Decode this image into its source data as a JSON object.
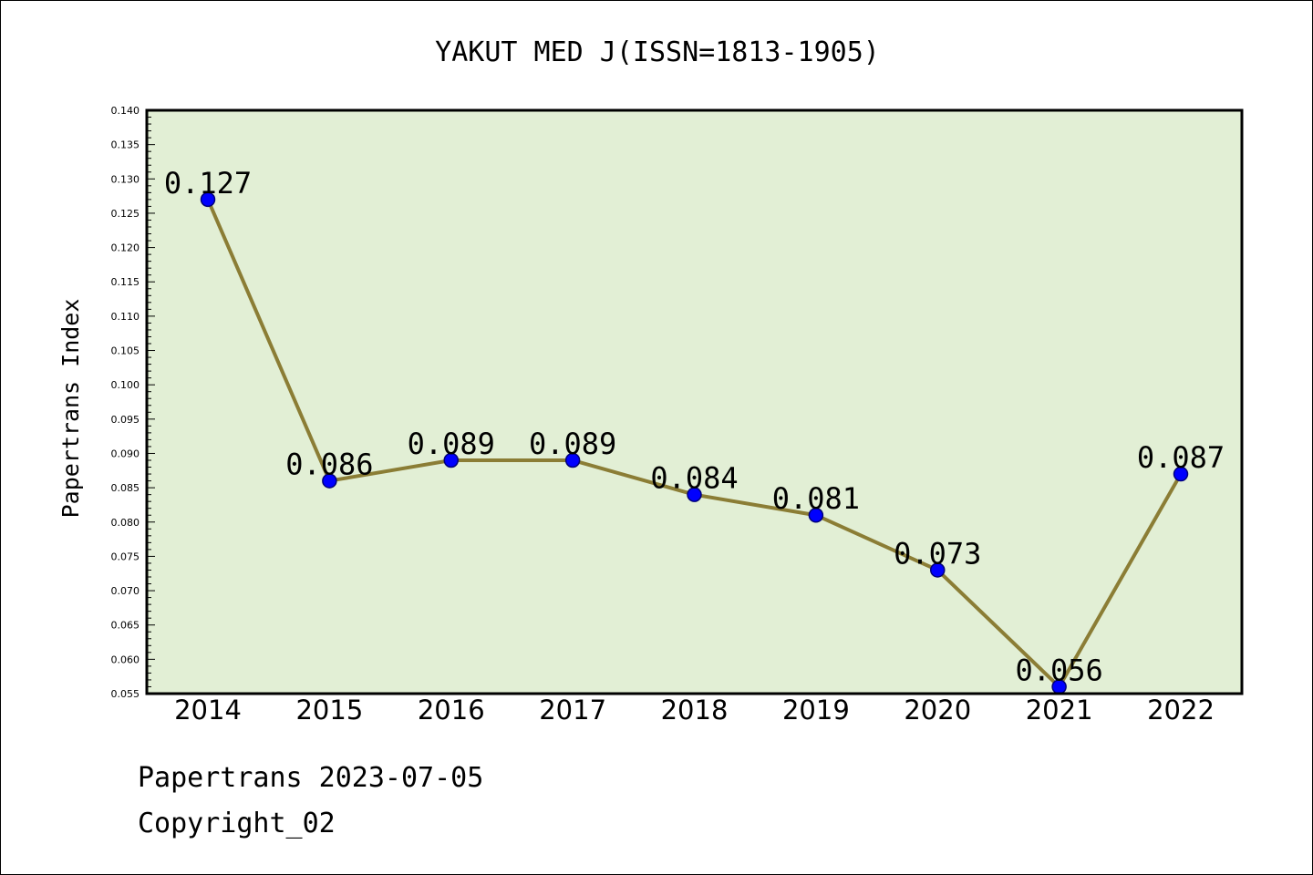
{
  "chart_data": {
    "type": "line",
    "title": "YAKUT MED J(ISSN=1813-1905)",
    "xlabel": "",
    "ylabel": "Papertrans Index",
    "categories": [
      "2014",
      "2015",
      "2016",
      "2017",
      "2018",
      "2019",
      "2020",
      "2021",
      "2022"
    ],
    "series": [
      {
        "values": [
          0.127,
          0.086,
          0.089,
          0.089,
          0.084,
          0.081,
          0.073,
          0.056,
          0.087
        ],
        "labels": [
          "0.127",
          "0.086",
          "0.089",
          "0.089",
          "0.084",
          "0.081",
          "0.073",
          "0.056",
          "0.087"
        ]
      }
    ],
    "ylim": [
      0.055,
      0.14
    ],
    "yticks": [
      "0.055",
      "0.060",
      "0.065",
      "0.070",
      "0.075",
      "0.080",
      "0.085",
      "0.090",
      "0.095",
      "0.100",
      "0.105",
      "0.110",
      "0.115",
      "0.120",
      "0.125",
      "0.130",
      "0.135",
      "0.140"
    ],
    "grid": false,
    "legend": "none",
    "colors": {
      "plot_background": "#e2efd5",
      "line": "#8b7d35",
      "marker": "#0000ff"
    }
  },
  "footer": {
    "line1": "Papertrans 2023-07-05",
    "line2": "Copyright_02"
  }
}
